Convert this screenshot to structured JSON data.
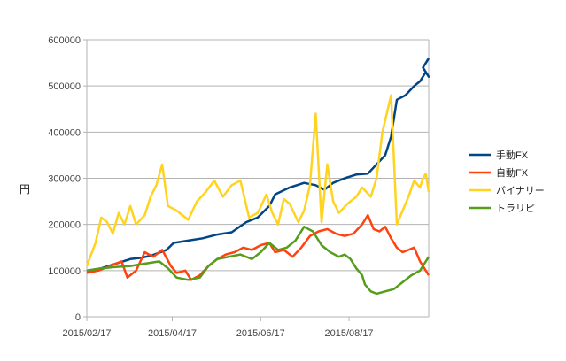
{
  "chart_data": {
    "type": "line",
    "title": "",
    "xlabel": "",
    "ylabel": "円",
    "ylim": [
      0,
      600000
    ],
    "yticks": [
      0,
      100000,
      200000,
      300000,
      400000,
      500000,
      600000
    ],
    "ytick_labels": [
      "0",
      "100000",
      "200000",
      "300000",
      "400000",
      "500000",
      "600000"
    ],
    "xticks": [
      "2015/02/17",
      "2015/04/17",
      "2015/06/17",
      "2015/08/17"
    ],
    "xtick_index": [
      0,
      59,
      120,
      181
    ],
    "x_range": [
      0,
      236
    ],
    "grid": true,
    "legend_position": "right",
    "series": [
      {
        "name": "手動FX",
        "color": "#004586",
        "points": [
          [
            0,
            100000
          ],
          [
            10,
            105000
          ],
          [
            20,
            115000
          ],
          [
            30,
            125000
          ],
          [
            38,
            128000
          ],
          [
            45,
            133000
          ],
          [
            55,
            145000
          ],
          [
            60,
            160000
          ],
          [
            70,
            165000
          ],
          [
            80,
            170000
          ],
          [
            90,
            178000
          ],
          [
            100,
            183000
          ],
          [
            110,
            205000
          ],
          [
            118,
            215000
          ],
          [
            126,
            240000
          ],
          [
            130,
            265000
          ],
          [
            140,
            280000
          ],
          [
            150,
            290000
          ],
          [
            158,
            285000
          ],
          [
            164,
            275000
          ],
          [
            170,
            290000
          ],
          [
            178,
            300000
          ],
          [
            186,
            308000
          ],
          [
            194,
            310000
          ],
          [
            200,
            330000
          ],
          [
            206,
            350000
          ],
          [
            210,
            390000
          ],
          [
            214,
            470000
          ],
          [
            220,
            480000
          ],
          [
            226,
            500000
          ],
          [
            230,
            510000
          ],
          [
            234,
            530000
          ],
          [
            236,
            520000
          ],
          [
            232,
            540000
          ],
          [
            236,
            560000
          ]
        ]
      },
      {
        "name": "自動FX",
        "color": "#ff420e",
        "points": [
          [
            0,
            95000
          ],
          [
            8,
            100000
          ],
          [
            16,
            110000
          ],
          [
            24,
            120000
          ],
          [
            28,
            85000
          ],
          [
            34,
            100000
          ],
          [
            40,
            140000
          ],
          [
            46,
            130000
          ],
          [
            52,
            145000
          ],
          [
            58,
            110000
          ],
          [
            62,
            95000
          ],
          [
            68,
            100000
          ],
          [
            72,
            80000
          ],
          [
            78,
            90000
          ],
          [
            84,
            110000
          ],
          [
            90,
            125000
          ],
          [
            96,
            135000
          ],
          [
            102,
            140000
          ],
          [
            108,
            150000
          ],
          [
            114,
            145000
          ],
          [
            120,
            155000
          ],
          [
            126,
            160000
          ],
          [
            130,
            140000
          ],
          [
            136,
            145000
          ],
          [
            142,
            130000
          ],
          [
            148,
            150000
          ],
          [
            154,
            175000
          ],
          [
            160,
            185000
          ],
          [
            166,
            190000
          ],
          [
            172,
            180000
          ],
          [
            178,
            175000
          ],
          [
            184,
            180000
          ],
          [
            190,
            200000
          ],
          [
            194,
            220000
          ],
          [
            198,
            190000
          ],
          [
            202,
            185000
          ],
          [
            206,
            195000
          ],
          [
            210,
            170000
          ],
          [
            214,
            150000
          ],
          [
            218,
            140000
          ],
          [
            222,
            145000
          ],
          [
            226,
            150000
          ],
          [
            230,
            120000
          ],
          [
            236,
            90000
          ]
        ]
      },
      {
        "name": "バイナリー",
        "color": "#ffd320",
        "points": [
          [
            0,
            110000
          ],
          [
            6,
            160000
          ],
          [
            10,
            215000
          ],
          [
            14,
            205000
          ],
          [
            18,
            180000
          ],
          [
            22,
            225000
          ],
          [
            26,
            200000
          ],
          [
            30,
            240000
          ],
          [
            34,
            200000
          ],
          [
            40,
            220000
          ],
          [
            44,
            260000
          ],
          [
            48,
            285000
          ],
          [
            52,
            330000
          ],
          [
            56,
            240000
          ],
          [
            62,
            230000
          ],
          [
            70,
            210000
          ],
          [
            76,
            250000
          ],
          [
            82,
            270000
          ],
          [
            88,
            295000
          ],
          [
            94,
            260000
          ],
          [
            100,
            285000
          ],
          [
            106,
            295000
          ],
          [
            112,
            215000
          ],
          [
            118,
            225000
          ],
          [
            124,
            265000
          ],
          [
            128,
            225000
          ],
          [
            132,
            200000
          ],
          [
            136,
            255000
          ],
          [
            140,
            245000
          ],
          [
            146,
            205000
          ],
          [
            150,
            230000
          ],
          [
            154,
            285000
          ],
          [
            158,
            440000
          ],
          [
            162,
            205000
          ],
          [
            166,
            330000
          ],
          [
            170,
            250000
          ],
          [
            174,
            225000
          ],
          [
            180,
            245000
          ],
          [
            186,
            260000
          ],
          [
            190,
            280000
          ],
          [
            196,
            260000
          ],
          [
            200,
            300000
          ],
          [
            204,
            400000
          ],
          [
            210,
            480000
          ],
          [
            214,
            200000
          ],
          [
            218,
            230000
          ],
          [
            222,
            260000
          ],
          [
            226,
            295000
          ],
          [
            230,
            280000
          ],
          [
            232,
            300000
          ],
          [
            234,
            310000
          ],
          [
            236,
            270000
          ]
        ]
      },
      {
        "name": "トラリピ",
        "color": "#579d1c",
        "points": [
          [
            0,
            100000
          ],
          [
            10,
            105000
          ],
          [
            20,
            108000
          ],
          [
            30,
            110000
          ],
          [
            40,
            115000
          ],
          [
            50,
            120000
          ],
          [
            56,
            105000
          ],
          [
            62,
            85000
          ],
          [
            70,
            80000
          ],
          [
            78,
            85000
          ],
          [
            84,
            110000
          ],
          [
            90,
            125000
          ],
          [
            98,
            130000
          ],
          [
            106,
            135000
          ],
          [
            114,
            125000
          ],
          [
            120,
            140000
          ],
          [
            126,
            160000
          ],
          [
            132,
            145000
          ],
          [
            138,
            150000
          ],
          [
            144,
            165000
          ],
          [
            150,
            195000
          ],
          [
            156,
            185000
          ],
          [
            162,
            155000
          ],
          [
            168,
            140000
          ],
          [
            174,
            130000
          ],
          [
            178,
            135000
          ],
          [
            182,
            125000
          ],
          [
            186,
            105000
          ],
          [
            190,
            90000
          ],
          [
            192,
            70000
          ],
          [
            196,
            55000
          ],
          [
            200,
            50000
          ],
          [
            206,
            55000
          ],
          [
            212,
            60000
          ],
          [
            218,
            75000
          ],
          [
            224,
            90000
          ],
          [
            230,
            100000
          ],
          [
            236,
            130000
          ]
        ]
      }
    ]
  }
}
